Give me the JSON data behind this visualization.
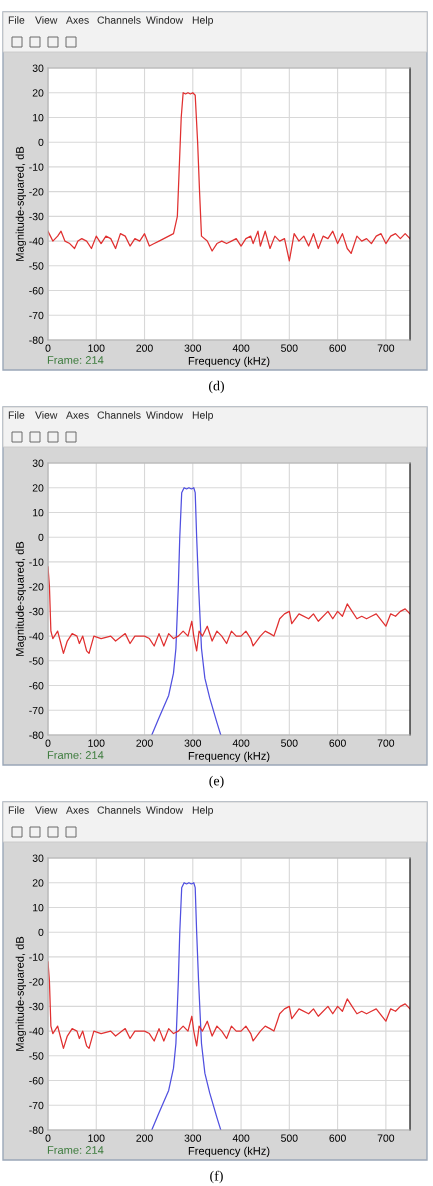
{
  "chart_data": [
    {
      "type": "line",
      "xlabel": "Frequency (kHz)",
      "ylabel": "Magnitude-squared, dB",
      "annotations": [
        "File",
        "View",
        "Axes",
        "Channels",
        "Window",
        "Help",
        "Frame: 214",
        "(d)"
      ],
      "xlim": [
        0,
        750
      ],
      "xticks": [
        0,
        100,
        200,
        300,
        400,
        500,
        600,
        700
      ],
      "ylim": [
        -80,
        30
      ],
      "yticks": [
        -80,
        -70,
        -60,
        -50,
        -40,
        -30,
        -20,
        -10,
        0,
        10,
        20,
        30
      ],
      "grid": true,
      "marker": "none",
      "line_style": "solid",
      "series": [
        {
          "color": "#e03030",
          "x": [
            0,
            5,
            10,
            20,
            27,
            35,
            45,
            55,
            62,
            70,
            80,
            90,
            100,
            110,
            120,
            130,
            140,
            150,
            160,
            170,
            180,
            190,
            200,
            210,
            220,
            230,
            240,
            250,
            260,
            268,
            272,
            276,
            280,
            285,
            290,
            295,
            300,
            305,
            310,
            314,
            318,
            330,
            340,
            350,
            360,
            370,
            380,
            390,
            400,
            410,
            420,
            425,
            435,
            440,
            450,
            460,
            470,
            480,
            490,
            500,
            510,
            520,
            530,
            540,
            550,
            560,
            570,
            580,
            590,
            600,
            610,
            620,
            628,
            640,
            650,
            660,
            670,
            680,
            690,
            700,
            710,
            720,
            730,
            740,
            750
          ],
          "values": [
            -36,
            -38,
            -40,
            -38,
            -36,
            -40,
            -41,
            -43,
            -40,
            -39,
            -40,
            -43,
            -38,
            -41,
            -38,
            -39,
            -43,
            -37,
            -38,
            -42,
            -39,
            -40,
            -37,
            -42,
            -41,
            -40,
            -39,
            -38,
            -37,
            -30,
            -10,
            10,
            20,
            19.5,
            20,
            19.5,
            20,
            19,
            0,
            -20,
            -38,
            -40,
            -44,
            -41,
            -40,
            -41,
            -40,
            -39,
            -42,
            -39,
            -38,
            -41,
            -36,
            -42,
            -36,
            -43,
            -38,
            -40,
            -39,
            -48,
            -37,
            -40,
            -38,
            -42,
            -37,
            -43,
            -38,
            -39,
            -36,
            -41,
            -37,
            -43,
            -45,
            -38,
            -40,
            -39,
            -41,
            -38,
            -37,
            -41,
            -38,
            -37,
            -39,
            -37,
            -39
          ]
        }
      ]
    },
    {
      "type": "line",
      "xlabel": "Frequency (kHz)",
      "ylabel": "Magnitude-squared, dB",
      "annotations": [
        "File",
        "View",
        "Axes",
        "Channels",
        "Window",
        "Help",
        "Frame: 214",
        "(e)"
      ],
      "xlim": [
        0,
        750
      ],
      "xticks": [
        0,
        100,
        200,
        300,
        400,
        500,
        600,
        700
      ],
      "ylim": [
        -80,
        30
      ],
      "yticks": [
        -80,
        -70,
        -60,
        -50,
        -40,
        -30,
        -20,
        -10,
        0,
        10,
        20,
        30
      ],
      "grid": true,
      "marker": "none",
      "line_style": "solid",
      "series": [
        {
          "color": "#5050e0",
          "x": [
            215,
            230,
            250,
            260,
            265,
            270,
            273,
            277,
            282,
            287,
            292,
            297,
            302,
            305,
            308,
            312,
            318,
            325,
            335,
            350,
            358
          ],
          "values": [
            -80,
            -73,
            -64,
            -55,
            -45,
            -20,
            0,
            18,
            20,
            19.5,
            20,
            19.5,
            20,
            18,
            0,
            -20,
            -45,
            -57,
            -65,
            -75,
            -80
          ]
        },
        {
          "color": "#e03030",
          "x": [
            0,
            3,
            6,
            10,
            20,
            28,
            32,
            40,
            50,
            60,
            65,
            72,
            80,
            85,
            95,
            110,
            130,
            140,
            160,
            170,
            180,
            200,
            210,
            220,
            230,
            240,
            250,
            260,
            270,
            280,
            290,
            298,
            302,
            308,
            313,
            320,
            330,
            340,
            350,
            360,
            370,
            380,
            390,
            400,
            410,
            420,
            425,
            440,
            450,
            460,
            468,
            475,
            480,
            490,
            500,
            505,
            520,
            540,
            550,
            560,
            580,
            590,
            600,
            610,
            620,
            630,
            640,
            650,
            660,
            670,
            680,
            700,
            710,
            720,
            730,
            740,
            750
          ],
          "values": [
            -12,
            -20,
            -38,
            -41,
            -38,
            -44,
            -47,
            -42,
            -39,
            -40,
            -43,
            -40,
            -46,
            -47,
            -40,
            -41,
            -40,
            -42,
            -39,
            -43,
            -40,
            -40,
            -41,
            -44,
            -39,
            -44,
            -39,
            -41,
            -40,
            -38,
            -40,
            -34,
            -40,
            -46,
            -38,
            -40,
            -36,
            -42,
            -38,
            -40,
            -43,
            -38,
            -40,
            -40,
            -38,
            -41,
            -44,
            -40,
            -38,
            -39,
            -40,
            -36,
            -33,
            -31,
            -30,
            -35,
            -31,
            -33,
            -31,
            -34,
            -30,
            -33,
            -30,
            -32,
            -27,
            -30,
            -33,
            -32,
            -33,
            -32,
            -31,
            -36,
            -31,
            -32,
            -30,
            -29,
            -31
          ]
        }
      ]
    },
    {
      "type": "line",
      "xlabel": "Frequency (kHz)",
      "ylabel": "Magnitude-squared, dB",
      "annotations": [
        "File",
        "View",
        "Axes",
        "Channels",
        "Window",
        "Help",
        "Frame: 214",
        "(f)"
      ],
      "xlim": [
        0,
        750
      ],
      "xticks": [
        0,
        100,
        200,
        300,
        400,
        500,
        600,
        700
      ],
      "ylim": [
        -80,
        30
      ],
      "yticks": [
        -80,
        -70,
        -60,
        -50,
        -40,
        -30,
        -20,
        -10,
        0,
        10,
        20,
        30
      ],
      "grid": true,
      "marker": "none",
      "line_style": "solid",
      "series": [
        {
          "color": "#5050e0",
          "x": [
            215,
            230,
            250,
            260,
            265,
            270,
            273,
            277,
            282,
            287,
            292,
            297,
            302,
            305,
            308,
            312,
            318,
            325,
            335,
            350,
            358
          ],
          "values": [
            -80,
            -73,
            -64,
            -55,
            -45,
            -20,
            0,
            18,
            20,
            19.5,
            20,
            19.5,
            20,
            18,
            0,
            -20,
            -45,
            -57,
            -65,
            -75,
            -80
          ]
        },
        {
          "color": "#e03030",
          "x": [
            0,
            3,
            6,
            10,
            20,
            28,
            32,
            40,
            50,
            60,
            65,
            72,
            80,
            85,
            95,
            110,
            130,
            140,
            160,
            170,
            180,
            200,
            210,
            220,
            230,
            240,
            250,
            260,
            270,
            280,
            290,
            298,
            302,
            308,
            313,
            320,
            330,
            340,
            350,
            360,
            370,
            380,
            390,
            400,
            410,
            420,
            425,
            440,
            450,
            460,
            468,
            475,
            480,
            490,
            500,
            505,
            520,
            540,
            550,
            560,
            580,
            590,
            600,
            610,
            620,
            630,
            640,
            650,
            660,
            670,
            680,
            700,
            710,
            720,
            730,
            740,
            750
          ],
          "values": [
            -12,
            -20,
            -38,
            -41,
            -38,
            -44,
            -47,
            -42,
            -39,
            -40,
            -43,
            -40,
            -46,
            -47,
            -40,
            -41,
            -40,
            -42,
            -39,
            -43,
            -40,
            -40,
            -41,
            -44,
            -39,
            -44,
            -39,
            -41,
            -40,
            -38,
            -40,
            -34,
            -40,
            -46,
            -38,
            -40,
            -36,
            -42,
            -38,
            -40,
            -43,
            -38,
            -40,
            -40,
            -38,
            -41,
            -44,
            -40,
            -38,
            -39,
            -40,
            -36,
            -33,
            -31,
            -30,
            -35,
            -31,
            -33,
            -31,
            -34,
            -30,
            -33,
            -30,
            -32,
            -27,
            -30,
            -33,
            -32,
            -33,
            -32,
            -31,
            -36,
            -31,
            -32,
            -30,
            -29,
            -31
          ]
        }
      ]
    }
  ]
}
